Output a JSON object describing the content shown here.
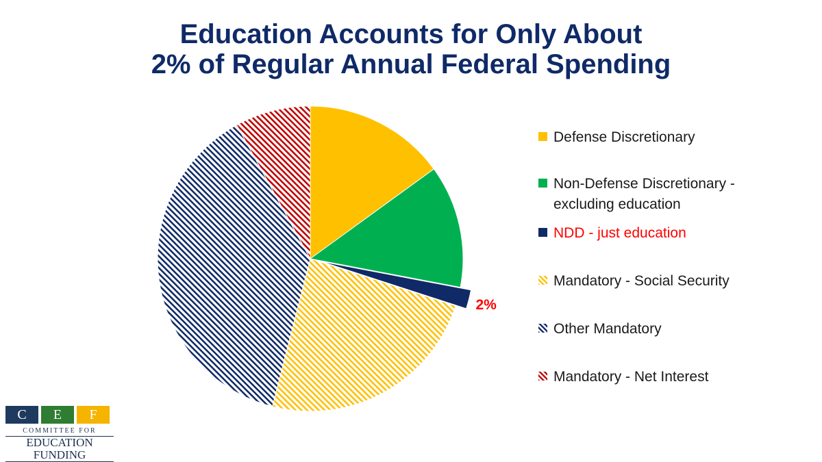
{
  "title_line1": "Education Accounts for Only About",
  "title_line2": "2% of Regular Annual Federal Spending",
  "chart_data": {
    "type": "pie",
    "title": "Education Accounts for Only About 2% of Regular Annual Federal Spending",
    "slices": [
      {
        "name": "Defense Discretionary",
        "value": 15,
        "color": "#ffc000",
        "pattern": "solid"
      },
      {
        "name": "Non-Defense Discretionary - excluding education",
        "value": 13,
        "color": "#00b050",
        "pattern": "solid"
      },
      {
        "name": "NDD - just education",
        "value": 2,
        "color": "#0f2a67",
        "pattern": "solid",
        "exploded": true,
        "label": "2%",
        "label_color": "#ff0000"
      },
      {
        "name": "Mandatory - Social Security",
        "value": 24,
        "color": "#ffc000",
        "pattern": "hatch"
      },
      {
        "name": "Other Mandatory",
        "value": 38,
        "color": "#0f2a67",
        "pattern": "hatch"
      },
      {
        "name": "Mandatory - Net Interest",
        "value": 8,
        "color": "#c00000",
        "pattern": "hatch"
      }
    ],
    "legend_position": "right"
  },
  "legend": [
    {
      "label": "Defense Discretionary",
      "color": "#ffc000",
      "pattern": "solid",
      "text_color": "#1a1a1a"
    },
    {
      "label": "Non-Defense Discretionary -",
      "label2": "excluding education",
      "color": "#00b050",
      "pattern": "solid",
      "text_color": "#1a1a1a"
    },
    {
      "label": "NDD - just education",
      "color": "#0f2a67",
      "pattern": "solid",
      "text_color": "#ff0000"
    },
    {
      "label": "Mandatory - Social Security",
      "color": "#ffc000",
      "pattern": "hatch",
      "text_color": "#1a1a1a"
    },
    {
      "label": "Other Mandatory",
      "color": "#0f2a67",
      "pattern": "hatch",
      "text_color": "#1a1a1a"
    },
    {
      "label": "Mandatory - Net Interest",
      "color": "#c00000",
      "pattern": "hatch",
      "text_color": "#1a1a1a"
    }
  ],
  "logo": {
    "letters": [
      "C",
      "E",
      "F"
    ],
    "letter_colors": [
      "#1f3a5f",
      "#2e7d32",
      "#f4b400"
    ],
    "line1": "COMMITTEE FOR",
    "line2": "EDUCATION FUNDING"
  }
}
